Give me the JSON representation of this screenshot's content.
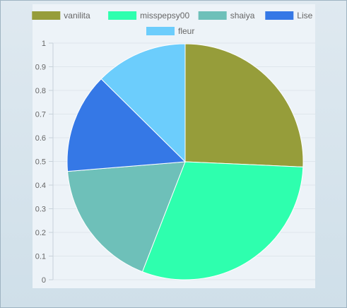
{
  "chart_data": {
    "type": "pie",
    "title": "",
    "categories": [
      "vanilita",
      "misspepsy00",
      "shaiya",
      "Lise",
      "fleur"
    ],
    "values": [
      0.257,
      0.302,
      0.178,
      0.137,
      0.126
    ],
    "colors": [
      "#969d3a",
      "#2effae",
      "#6ec0b9",
      "#3578e6",
      "#6ccdfc"
    ],
    "yticks": [
      "1",
      "0.9",
      "0.8",
      "0.7",
      "0.6",
      "0.5",
      "0.4",
      "0.3",
      "0.2",
      "0.1",
      "0"
    ],
    "ylim": [
      0,
      1
    ],
    "grid": true,
    "legend_position": "top"
  }
}
